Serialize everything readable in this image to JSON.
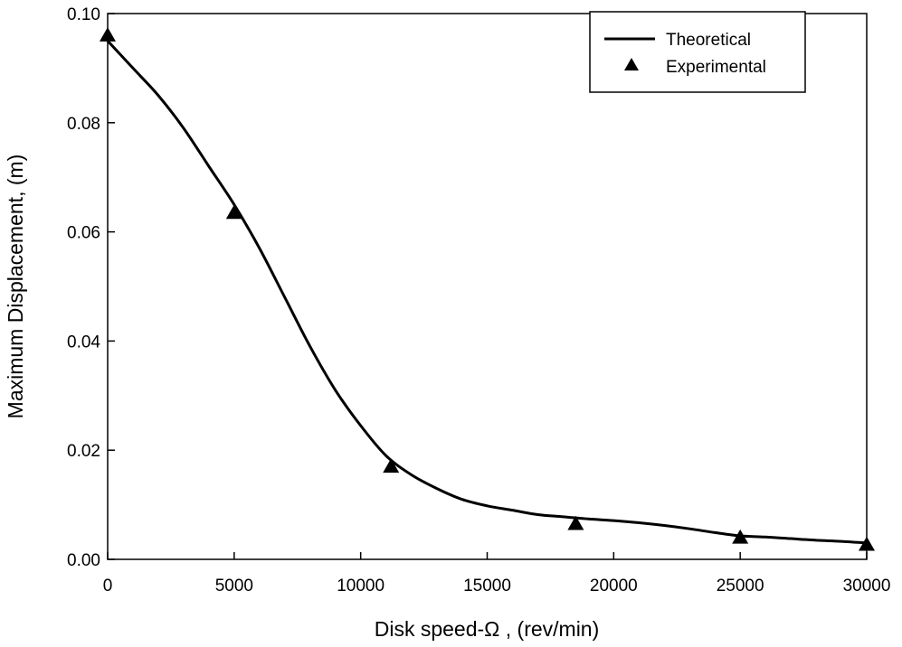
{
  "chart_data": {
    "type": "line",
    "title": "",
    "xlabel": "Disk speed-Ω , (rev/min)",
    "ylabel": "Maximum Displacement, (m)",
    "xlim": [
      0,
      30000
    ],
    "ylim": [
      0,
      0.1
    ],
    "x_ticks": [
      "0",
      "5000",
      "10000",
      "15000",
      "20000",
      "25000",
      "30000"
    ],
    "y_ticks": [
      "0.00",
      "0.02",
      "0.04",
      "0.06",
      "0.08",
      "0.10"
    ],
    "legend_position": "top-right",
    "series": [
      {
        "name": "Theoretical",
        "style": "line",
        "color": "#000000",
        "x": [
          0,
          1000,
          2000,
          3000,
          4000,
          5000,
          6000,
          7000,
          8000,
          9000,
          10000,
          11000,
          12000,
          13000,
          14000,
          15000,
          16000,
          17000,
          18000,
          19000,
          20000,
          21000,
          22000,
          23000,
          24000,
          25000,
          26000,
          27000,
          28000,
          29000,
          30000
        ],
        "y": [
          0.095,
          0.09,
          0.085,
          0.079,
          0.072,
          0.065,
          0.057,
          0.048,
          0.039,
          0.031,
          0.0245,
          0.019,
          0.0155,
          0.013,
          0.011,
          0.0098,
          0.009,
          0.0082,
          0.0078,
          0.0074,
          0.0071,
          0.0067,
          0.0062,
          0.0056,
          0.0049,
          0.0043,
          0.0041,
          0.0038,
          0.0035,
          0.0033,
          0.003
        ]
      },
      {
        "name": "Experimental",
        "style": "marker-triangle",
        "color": "#000000",
        "x": [
          0,
          5000,
          11200,
          18500,
          25000,
          30000
        ],
        "y": [
          0.096,
          0.0635,
          0.017,
          0.0065,
          0.004,
          0.0027
        ]
      }
    ]
  }
}
